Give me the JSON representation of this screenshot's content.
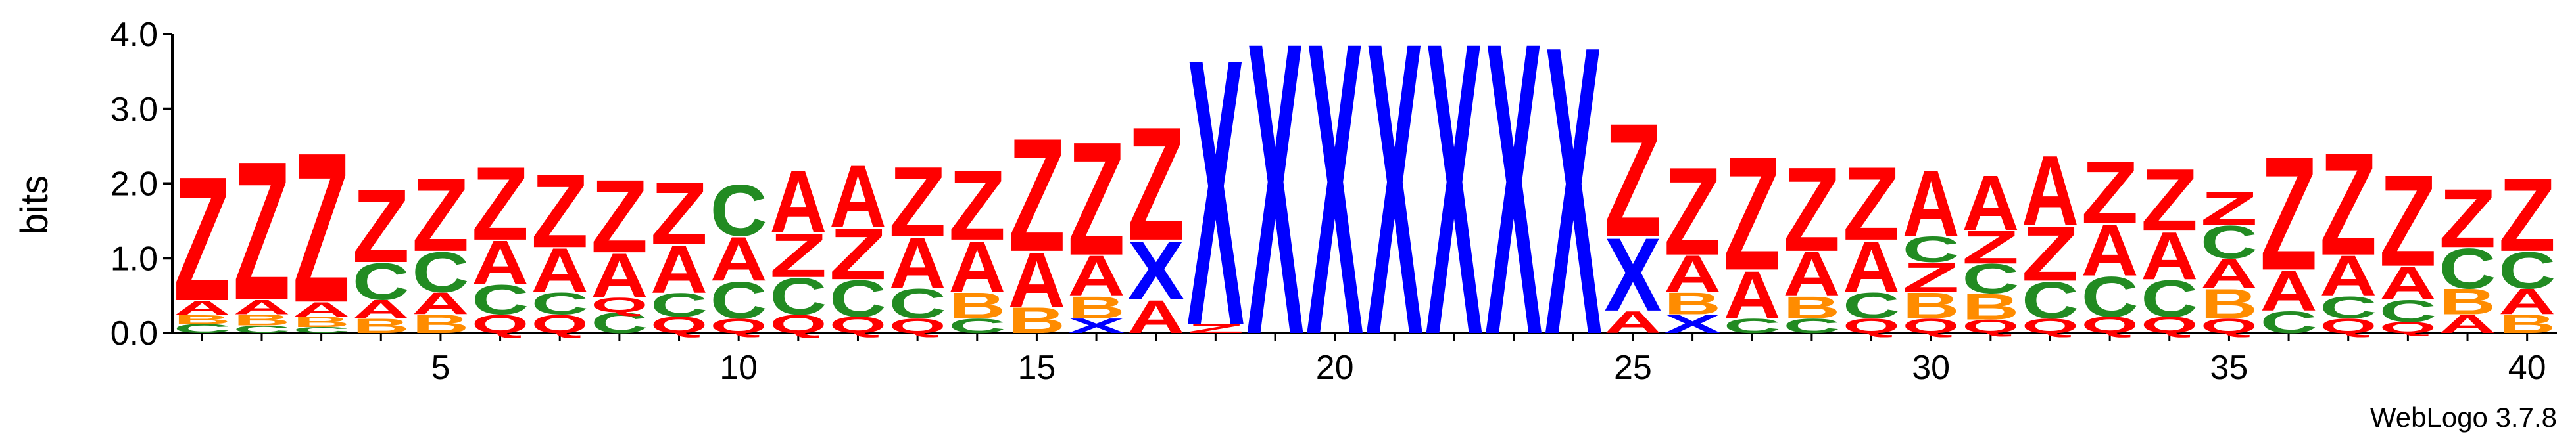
{
  "chart_data": {
    "type": "sequence-logo",
    "ylabel": "bits",
    "ylim": [
      0,
      4.0
    ],
    "yticks": [
      "0.0",
      "1.0",
      "2.0",
      "3.0",
      "4.0"
    ],
    "xtick_labels": [
      "5",
      "10",
      "15",
      "20",
      "25",
      "30",
      "35",
      "40"
    ],
    "xtick_values": [
      5,
      10,
      15,
      20,
      25,
      30,
      35,
      40
    ],
    "n_positions": 40,
    "credit": "WebLogo 3.7.8",
    "colors": {
      "Z": "#ff0000",
      "A": "#ff0000",
      "X": "#0000ff",
      "C": "#228b22",
      "B": "#ff8c00",
      "Q": "#ff0000",
      "R": "#ff8c00",
      "O": "#ff0000"
    },
    "positions": [
      {
        "pos": 1,
        "stack": [
          [
            "C",
            0.12
          ],
          [
            "B",
            0.12
          ],
          [
            "A",
            0.2
          ],
          [
            "Z",
            1.7
          ]
        ]
      },
      {
        "pos": 2,
        "stack": [
          [
            "C",
            0.1
          ],
          [
            "B",
            0.15
          ],
          [
            "A",
            0.2
          ],
          [
            "Z",
            1.9
          ]
        ]
      },
      {
        "pos": 3,
        "stack": [
          [
            "C",
            0.08
          ],
          [
            "B",
            0.14
          ],
          [
            "A",
            0.2
          ],
          [
            "Z",
            2.05
          ]
        ]
      },
      {
        "pos": 4,
        "stack": [
          [
            "B",
            0.2
          ],
          [
            "A",
            0.25
          ],
          [
            "C",
            0.5
          ],
          [
            "Z",
            1.0
          ]
        ]
      },
      {
        "pos": 5,
        "stack": [
          [
            "B",
            0.25
          ],
          [
            "A",
            0.3
          ],
          [
            "C",
            0.55
          ],
          [
            "Z",
            1.0
          ]
        ]
      },
      {
        "pos": 6,
        "stack": [
          [
            "Q",
            0.25
          ],
          [
            "C",
            0.4
          ],
          [
            "A",
            0.6
          ],
          [
            "Z",
            1.0
          ]
        ]
      },
      {
        "pos": 7,
        "stack": [
          [
            "Q",
            0.25
          ],
          [
            "C",
            0.3
          ],
          [
            "A",
            0.6
          ],
          [
            "Z",
            1.0
          ]
        ]
      },
      {
        "pos": 8,
        "stack": [
          [
            "C",
            0.28
          ],
          [
            "Q",
            0.2
          ],
          [
            "A",
            0.6
          ],
          [
            "Z",
            1.0
          ]
        ]
      },
      {
        "pos": 9,
        "stack": [
          [
            "Q",
            0.22
          ],
          [
            "C",
            0.32
          ],
          [
            "A",
            0.65
          ],
          [
            "Z",
            0.85
          ]
        ]
      },
      {
        "pos": 10,
        "stack": [
          [
            "Q",
            0.2
          ],
          [
            "C",
            0.5
          ],
          [
            "A",
            0.6
          ],
          [
            "C",
            0.7
          ]
        ]
      },
      {
        "pos": 11,
        "stack": [
          [
            "Q",
            0.25
          ],
          [
            "C",
            0.5
          ],
          [
            "Z",
            0.6
          ],
          [
            "A",
            0.85
          ]
        ]
      },
      {
        "pos": 12,
        "stack": [
          [
            "Q",
            0.22
          ],
          [
            "C",
            0.5
          ],
          [
            "Z",
            0.7
          ],
          [
            "A",
            0.85
          ]
        ]
      },
      {
        "pos": 13,
        "stack": [
          [
            "Q",
            0.2
          ],
          [
            "C",
            0.4
          ],
          [
            "A",
            0.7
          ],
          [
            "Z",
            0.95
          ]
        ]
      },
      {
        "pos": 14,
        "stack": [
          [
            "C",
            0.2
          ],
          [
            "B",
            0.35
          ],
          [
            "A",
            0.7
          ],
          [
            "Z",
            0.95
          ]
        ]
      },
      {
        "pos": 15,
        "stack": [
          [
            "B",
            0.35
          ],
          [
            "A",
            0.75
          ],
          [
            "Z",
            1.55
          ]
        ]
      },
      {
        "pos": 16,
        "stack": [
          [
            "X",
            0.2
          ],
          [
            "B",
            0.3
          ],
          [
            "A",
            0.55
          ],
          [
            "Z",
            1.55
          ]
        ]
      },
      {
        "pos": 17,
        "stack": [
          [
            "A",
            0.45
          ],
          [
            "X",
            0.8
          ],
          [
            "Z",
            1.55
          ]
        ]
      },
      {
        "pos": 18,
        "stack": [
          [
            "Z",
            0.12
          ],
          [
            "X",
            3.65
          ]
        ]
      },
      {
        "pos": 19,
        "stack": [
          [
            "X",
            4.0
          ]
        ]
      },
      {
        "pos": 20,
        "stack": [
          [
            "X",
            4.0
          ]
        ]
      },
      {
        "pos": 21,
        "stack": [
          [
            "X",
            4.0
          ]
        ]
      },
      {
        "pos": 22,
        "stack": [
          [
            "X",
            4.0
          ]
        ]
      },
      {
        "pos": 23,
        "stack": [
          [
            "X",
            4.0
          ]
        ]
      },
      {
        "pos": 24,
        "stack": [
          [
            "X",
            3.95
          ]
        ]
      },
      {
        "pos": 25,
        "stack": [
          [
            "A",
            0.3
          ],
          [
            "X",
            1.0
          ],
          [
            "Z",
            1.55
          ]
        ]
      },
      {
        "pos": 26,
        "stack": [
          [
            "X",
            0.25
          ],
          [
            "B",
            0.3
          ],
          [
            "A",
            0.5
          ],
          [
            "Z",
            1.2
          ]
        ]
      },
      {
        "pos": 27,
        "stack": [
          [
            "C",
            0.2
          ],
          [
            "A",
            0.65
          ],
          [
            "Z",
            1.55
          ]
        ]
      },
      {
        "pos": 28,
        "stack": [
          [
            "C",
            0.2
          ],
          [
            "B",
            0.3
          ],
          [
            "A",
            0.6
          ],
          [
            "Z",
            1.15
          ]
        ]
      },
      {
        "pos": 29,
        "stack": [
          [
            "Q",
            0.2
          ],
          [
            "C",
            0.35
          ],
          [
            "A",
            0.7
          ],
          [
            "Z",
            1.0
          ]
        ]
      },
      {
        "pos": 30,
        "stack": [
          [
            "Q",
            0.2
          ],
          [
            "B",
            0.35
          ],
          [
            "Z",
            0.4
          ],
          [
            "C",
            0.35
          ],
          [
            "A",
            0.9
          ]
        ]
      },
      {
        "pos": 31,
        "stack": [
          [
            "Q",
            0.18
          ],
          [
            "B",
            0.35
          ],
          [
            "C",
            0.4
          ],
          [
            "Z",
            0.45
          ],
          [
            "A",
            0.75
          ]
        ]
      },
      {
        "pos": 32,
        "stack": [
          [
            "Q",
            0.2
          ],
          [
            "C",
            0.5
          ],
          [
            "Z",
            0.75
          ],
          [
            "A",
            0.95
          ]
        ]
      },
      {
        "pos": 33,
        "stack": [
          [
            "Q",
            0.22
          ],
          [
            "C",
            0.55
          ],
          [
            "A",
            0.7
          ],
          [
            "Z",
            0.85
          ]
        ]
      },
      {
        "pos": 34,
        "stack": [
          [
            "Q",
            0.22
          ],
          [
            "C",
            0.5
          ],
          [
            "A",
            0.65
          ],
          [
            "Z",
            0.85
          ]
        ]
      },
      {
        "pos": 35,
        "stack": [
          [
            "Q",
            0.2
          ],
          [
            "B",
            0.4
          ],
          [
            "A",
            0.4
          ],
          [
            "C",
            0.45
          ],
          [
            "Z",
            0.45
          ]
        ]
      },
      {
        "pos": 36,
        "stack": [
          [
            "C",
            0.3
          ],
          [
            "A",
            0.55
          ],
          [
            "Z",
            1.55
          ]
        ]
      },
      {
        "pos": 37,
        "stack": [
          [
            "Q",
            0.2
          ],
          [
            "C",
            0.3
          ],
          [
            "A",
            0.55
          ],
          [
            "Z",
            1.4
          ]
        ]
      },
      {
        "pos": 38,
        "stack": [
          [
            "Q",
            0.15
          ],
          [
            "C",
            0.3
          ],
          [
            "A",
            0.45
          ],
          [
            "Z",
            1.25
          ]
        ]
      },
      {
        "pos": 39,
        "stack": [
          [
            "A",
            0.25
          ],
          [
            "B",
            0.35
          ],
          [
            "C",
            0.55
          ],
          [
            "Z",
            0.8
          ]
        ]
      },
      {
        "pos": 40,
        "stack": [
          [
            "B",
            0.25
          ],
          [
            "A",
            0.35
          ],
          [
            "C",
            0.5
          ],
          [
            "Z",
            1.0
          ]
        ]
      }
    ]
  }
}
